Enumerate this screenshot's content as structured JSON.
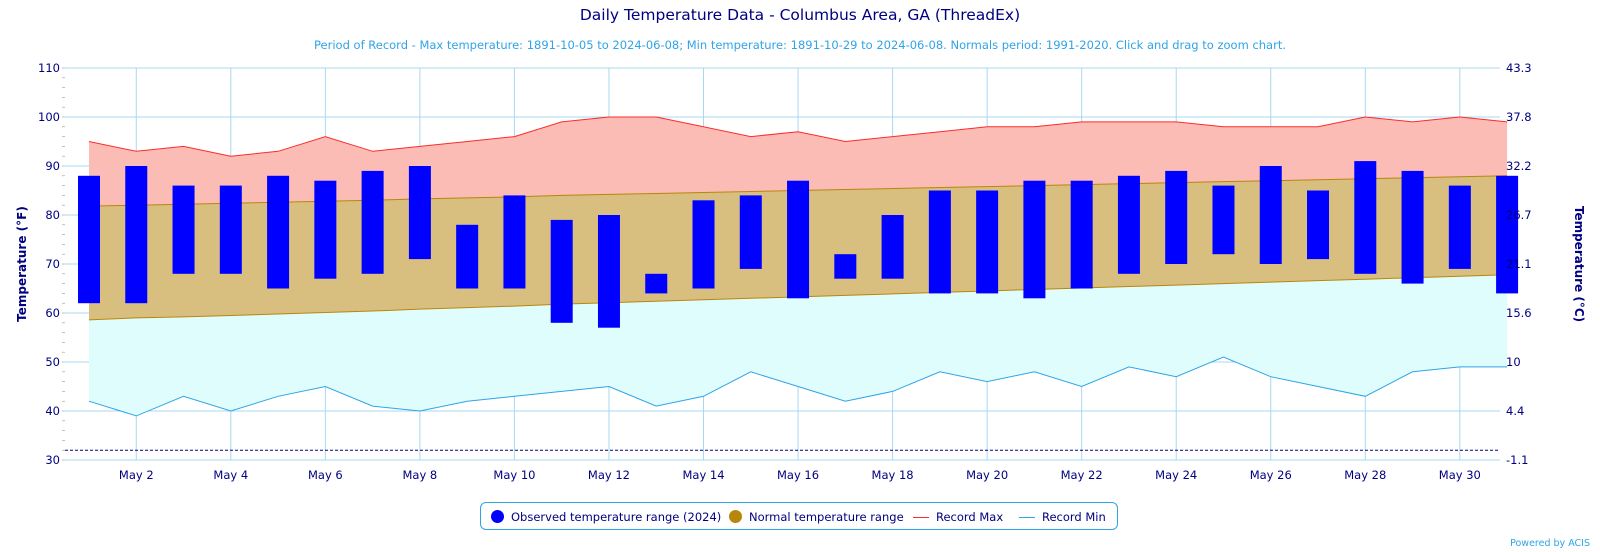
{
  "header": {
    "title": "Daily Temperature Data - Columbus Area, GA (ThreadEx)",
    "subtitle": "Period of Record - Max temperature: 1891-10-05 to 2024-06-08; Min temperature: 1891-10-29 to 2024-06-08. Normals period: 1991-2020. Click and drag to zoom chart."
  },
  "legend": {
    "observed": "Observed temperature range (2024)",
    "normal": "Normal temperature range",
    "record_max": "Record Max",
    "record_min": "Record Min"
  },
  "credit": "Powered by ACIS",
  "colors": {
    "observed": "#0000ff",
    "normal_fill": "#d9bf7f",
    "normal_line": "#b8860b",
    "normal_dot": "#b8860b",
    "record_max_line": "#ff2a2a",
    "record_max_fill": "#fbbcb6",
    "record_min_line": "#2fa4e7",
    "record_min_fill": "#e0fdfd",
    "axis_text": "#000080",
    "grid": "#a8d7f2"
  },
  "chart_data": {
    "type": "bar",
    "title": "Daily Temperature Data - Columbus Area, GA (ThreadEx)",
    "ylabel": "Temperature (°F)",
    "y2label": "Temperature (°C)",
    "ylim": [
      30,
      110
    ],
    "yticks": [
      30,
      40,
      50,
      60,
      70,
      80,
      90,
      100,
      110
    ],
    "y2ticks": [
      "-1.1",
      "4.4",
      "10",
      "15.6",
      "21.1",
      "26.7",
      "32.2",
      "37.8",
      "43.3"
    ],
    "xlabel_ticks": [
      "May 2",
      "May 4",
      "May 6",
      "May 8",
      "May 10",
      "May 12",
      "May 14",
      "May 16",
      "May 18",
      "May 20",
      "May 22",
      "May 24",
      "May 26",
      "May 28",
      "May 30"
    ],
    "days": [
      1,
      2,
      3,
      4,
      5,
      6,
      7,
      8,
      9,
      10,
      11,
      12,
      13,
      14,
      15,
      16,
      17,
      18,
      19,
      20,
      21,
      22,
      23,
      24,
      25,
      26,
      27,
      28,
      29,
      30,
      31
    ],
    "observed_max": [
      88,
      90,
      86,
      86,
      88,
      87,
      89,
      90,
      78,
      84,
      79,
      80,
      68,
      83,
      84,
      87,
      72,
      80,
      85,
      85,
      87,
      87,
      88,
      89,
      86,
      90,
      85,
      91,
      89,
      86,
      88
    ],
    "observed_min": [
      62,
      62,
      68,
      68,
      65,
      67,
      68,
      71,
      65,
      65,
      58,
      57,
      64,
      65,
      69,
      63,
      67,
      67,
      64,
      64,
      63,
      65,
      68,
      70,
      72,
      70,
      71,
      68,
      66,
      69,
      64
    ],
    "normal_max": [
      81.8,
      82.0,
      82.2,
      82.4,
      82.6,
      82.8,
      83.0,
      83.3,
      83.5,
      83.7,
      84.0,
      84.2,
      84.4,
      84.6,
      84.8,
      85.0,
      85.2,
      85.4,
      85.6,
      85.8,
      86.0,
      86.2,
      86.4,
      86.6,
      86.8,
      87.0,
      87.2,
      87.4,
      87.6,
      87.8,
      88.0
    ],
    "normal_min": [
      58.6,
      59.0,
      59.2,
      59.5,
      59.8,
      60.1,
      60.4,
      60.8,
      61.1,
      61.4,
      61.8,
      62.1,
      62.4,
      62.7,
      63.0,
      63.3,
      63.6,
      63.9,
      64.2,
      64.5,
      64.8,
      65.1,
      65.4,
      65.7,
      66.0,
      66.3,
      66.6,
      66.9,
      67.2,
      67.5,
      67.8
    ],
    "record_max": [
      95,
      93,
      94,
      92,
      93,
      96,
      93,
      94,
      95,
      96,
      99,
      100,
      100,
      98,
      96,
      97,
      95,
      96,
      97,
      98,
      98,
      99,
      99,
      99,
      98,
      98,
      98,
      100,
      99,
      100,
      99
    ],
    "record_min": [
      42,
      39,
      43,
      40,
      43,
      45,
      41,
      40,
      42,
      43,
      44,
      45,
      41,
      43,
      48,
      45,
      42,
      44,
      48,
      46,
      48,
      45,
      49,
      47,
      51,
      47,
      45,
      43,
      48,
      49,
      49
    ],
    "reference_line": 32,
    "grid": true,
    "legend_position": "bottom"
  }
}
